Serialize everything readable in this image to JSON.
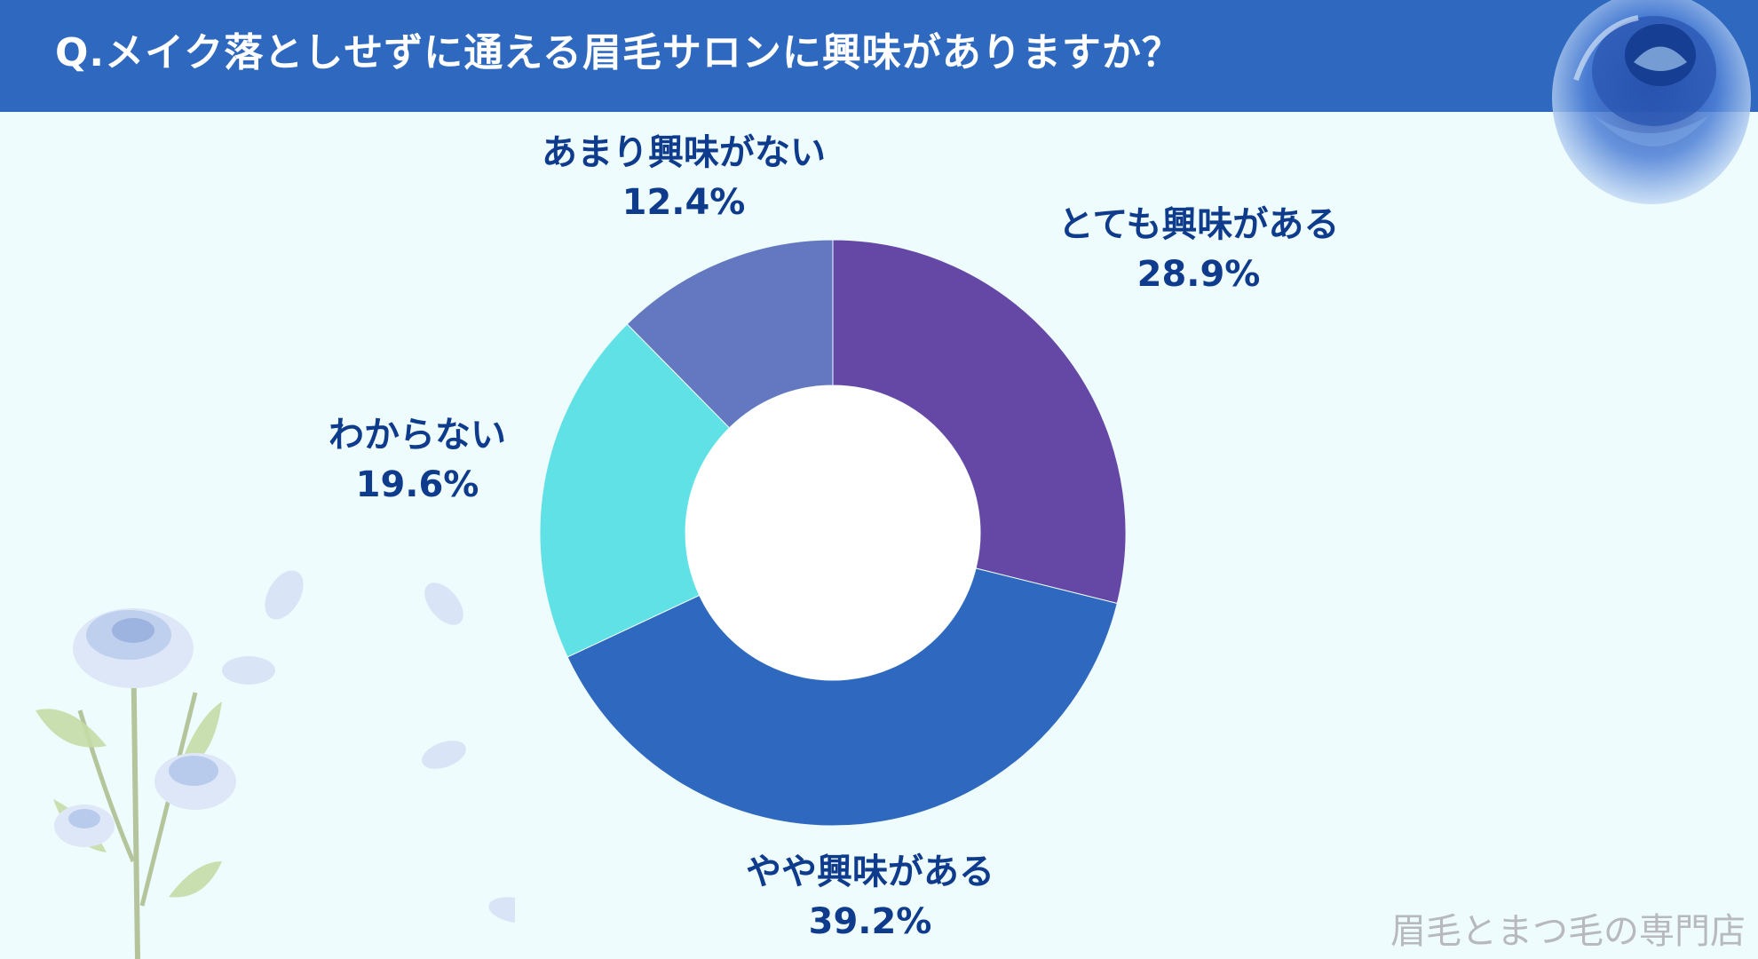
{
  "header": {
    "title": "Q.メイク落としせずに通える眉毛サロンに興味がありますか？"
  },
  "chart_data": {
    "type": "pie",
    "donut": true,
    "title": "Q.メイク落としせずに通える眉毛サロンに興味がありますか？",
    "slices": [
      {
        "label": "とても興味がある",
        "value": 28.9,
        "value_label": "28.9%",
        "color": "#6547a5"
      },
      {
        "label": "やや興味がある",
        "value": 39.2,
        "value_label": "39.2%",
        "color": "#2e69bf"
      },
      {
        "label": "わからない",
        "value": 19.6,
        "value_label": "19.6%",
        "color": "#5fe1e6"
      },
      {
        "label": "あまり興味がない",
        "value": 12.4,
        "value_label": "12.4%",
        "color": "#6378c0"
      }
    ],
    "start_angle": "12 o'clock",
    "direction": "clockwise",
    "legend": "none"
  },
  "watermark": "眉毛とまつ毛の専門店",
  "colors": {
    "header": "#2e69bf",
    "background": "#eefcfd",
    "label_text": "#0f3b8c"
  }
}
